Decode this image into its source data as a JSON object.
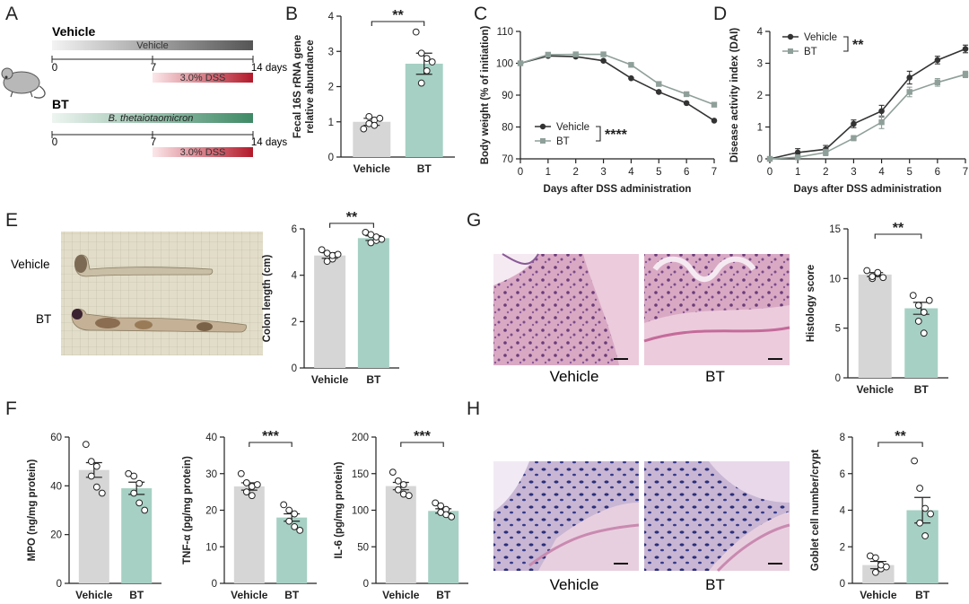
{
  "figure": {
    "panel_letters": [
      "A",
      "B",
      "C",
      "D",
      "E",
      "F",
      "G",
      "H"
    ],
    "colors": {
      "vehicle": "#d6d6d6",
      "bt": "#a6d0c4",
      "vehicle_line": "#333333",
      "bt_line": "#8f9f99",
      "dss": "#b3192a"
    }
  },
  "panel_a": {
    "groups": [
      {
        "name": "Vehicle",
        "bar_label": "Vehicle",
        "bar_style": "grey-gradient",
        "bar_italic": false
      },
      {
        "name": "BT",
        "bar_label": "B. thetaiotaomicron",
        "bar_style": "green-gradient",
        "bar_italic": true
      }
    ],
    "timeline_ticks": [
      "0",
      "7",
      "14 days"
    ],
    "dss_label": "3.0% DSS",
    "icon": "mouse-icon"
  },
  "panel_e": {
    "photo_labels": [
      "Vehicle",
      "BT"
    ],
    "photo": "colon-photo-grid"
  },
  "panel_g": {
    "image_labels": [
      "Vehicle",
      "BT"
    ],
    "stain": "H&E"
  },
  "panel_h": {
    "image_labels": [
      "Vehicle",
      "BT"
    ],
    "stain": "PAS"
  },
  "chart_data": [
    {
      "id": "B",
      "type": "bar",
      "categories": [
        "Vehicle",
        "BT"
      ],
      "values": [
        1.0,
        2.65
      ],
      "sem": [
        0.1,
        0.3
      ],
      "points": [
        [
          0.8,
          0.95,
          1.05,
          1.15,
          0.9,
          1.1
        ],
        [
          3.55,
          2.95,
          2.45,
          2.1,
          2.8,
          2.7
        ]
      ],
      "ylabel": "Fecal 16S rRNA gene\nrelative abundance",
      "ylim": [
        0,
        4
      ],
      "yticks": [
        "0",
        "1",
        "2",
        "3",
        "4"
      ],
      "significance": "**"
    },
    {
      "id": "C",
      "type": "line",
      "x": [
        0,
        1,
        2,
        3,
        4,
        5,
        6,
        7
      ],
      "series": [
        {
          "name": "Vehicle",
          "values": [
            100,
            102.3,
            102.1,
            100.8,
            95.3,
            91,
            87.5,
            82
          ]
        },
        {
          "name": "BT",
          "values": [
            100,
            102.7,
            102.8,
            102.8,
            99.5,
            93.5,
            90.3,
            87
          ]
        }
      ],
      "xlabel": "Days after DSS administration",
      "ylabel": "Body weight (% of initiation)",
      "xlim": [
        0,
        7
      ],
      "ylim": [
        70,
        110
      ],
      "xticks": [
        "0",
        "1",
        "2",
        "3",
        "4",
        "5",
        "6",
        "7"
      ],
      "yticks": [
        "70",
        "80",
        "90",
        "100",
        "110"
      ],
      "significance": "****",
      "legend": "bottom-left"
    },
    {
      "id": "D",
      "type": "line",
      "x": [
        0,
        1,
        2,
        3,
        4,
        5,
        6,
        7
      ],
      "series": [
        {
          "name": "Vehicle",
          "values": [
            0,
            0.2,
            0.3,
            1.1,
            1.5,
            2.55,
            3.1,
            3.45
          ],
          "sem": [
            0.05,
            0.12,
            0.12,
            0.12,
            0.18,
            0.2,
            0.12,
            0.12
          ]
        },
        {
          "name": "BT",
          "values": [
            0,
            0.05,
            0.2,
            0.65,
            1.15,
            2.1,
            2.4,
            2.65
          ],
          "sem": [
            0.03,
            0.06,
            0.1,
            0.08,
            0.2,
            0.15,
            0.12,
            0.1
          ]
        }
      ],
      "xlabel": "Days after DSS administration",
      "ylabel": "Disease activity index (DAI)",
      "xlim": [
        0,
        7
      ],
      "ylim": [
        0,
        4
      ],
      "xticks": [
        "0",
        "1",
        "2",
        "3",
        "4",
        "5",
        "6",
        "7"
      ],
      "yticks": [
        "0",
        "1",
        "2",
        "3",
        "4"
      ],
      "significance": "**",
      "legend": "top-left"
    },
    {
      "id": "E",
      "type": "bar",
      "categories": [
        "Vehicle",
        "BT"
      ],
      "values": [
        4.85,
        5.6
      ],
      "sem": [
        0.12,
        0.1
      ],
      "points": [
        [
          5.1,
          4.95,
          4.7,
          4.6,
          4.85,
          4.9
        ],
        [
          5.85,
          5.75,
          5.5,
          5.4,
          5.65,
          5.55
        ]
      ],
      "ylabel": "Colon length (cm)",
      "ylim": [
        0,
        6
      ],
      "yticks": [
        "0",
        "2",
        "4",
        "6"
      ],
      "significance": "**"
    },
    {
      "id": "G",
      "type": "bar",
      "categories": [
        "Vehicle",
        "BT"
      ],
      "values": [
        10.4,
        7.0
      ],
      "sem": [
        0.2,
        0.6
      ],
      "points": [
        [
          10.8,
          10.0,
          10.5,
          10.2,
          10.6,
          10.1
        ],
        [
          8.3,
          7.3,
          6.6,
          5.7,
          4.5,
          7.8
        ]
      ],
      "ylabel": "Histology score",
      "ylim": [
        0,
        15
      ],
      "yticks": [
        "0",
        "5",
        "10",
        "15"
      ],
      "significance": "**"
    },
    {
      "id": "F1",
      "type": "bar",
      "categories": [
        "Vehicle",
        "BT"
      ],
      "values": [
        46.5,
        39
      ],
      "sem": [
        3,
        2.5
      ],
      "points": [
        [
          57,
          50,
          48,
          44,
          39.5,
          37
        ],
        [
          45,
          44,
          41,
          37,
          33,
          30
        ]
      ],
      "ylabel": "MPO (ng/mg protein)",
      "ylim": [
        0,
        60
      ],
      "yticks": [
        "0",
        "20",
        "40",
        "60"
      ],
      "significance": ""
    },
    {
      "id": "F2",
      "type": "bar",
      "categories": [
        "Vehicle",
        "BT"
      ],
      "values": [
        26.5,
        18
      ],
      "sem": [
        1,
        1
      ],
      "points": [
        [
          30,
          27.5,
          26.5,
          25,
          24,
          27
        ],
        [
          21.5,
          20,
          19,
          17,
          15.5,
          14.5
        ]
      ],
      "ylabel": "TNF-α (pg/mg protein)",
      "ylim": [
        0,
        40
      ],
      "yticks": [
        "0",
        "10",
        "20",
        "30",
        "40"
      ],
      "significance": "***"
    },
    {
      "id": "F3",
      "type": "bar",
      "categories": [
        "Vehicle",
        "BT"
      ],
      "values": [
        133,
        99
      ],
      "sem": [
        5,
        3
      ],
      "points": [
        [
          152,
          140,
          135,
          128,
          122,
          120
        ],
        [
          110,
          106,
          101,
          97,
          94,
          91
        ]
      ],
      "ylabel": "IL-6 (pg/mg protein)",
      "ylim": [
        0,
        200
      ],
      "yticks": [
        "0",
        "50",
        "100",
        "150",
        "200"
      ],
      "significance": "***"
    },
    {
      "id": "H",
      "type": "bar",
      "categories": [
        "Vehicle",
        "BT"
      ],
      "values": [
        1.0,
        4.0
      ],
      "sem": [
        0.2,
        0.7
      ],
      "points": [
        [
          1.5,
          1.4,
          0.8,
          0.6,
          1.0,
          0.9
        ],
        [
          6.7,
          5.2,
          4.1,
          3.3,
          2.6,
          3.8
        ]
      ],
      "ylabel": "Goblet cell number/crypt",
      "ylim": [
        0,
        8
      ],
      "yticks": [
        "0",
        "2",
        "4",
        "6",
        "8"
      ],
      "significance": "**"
    }
  ]
}
